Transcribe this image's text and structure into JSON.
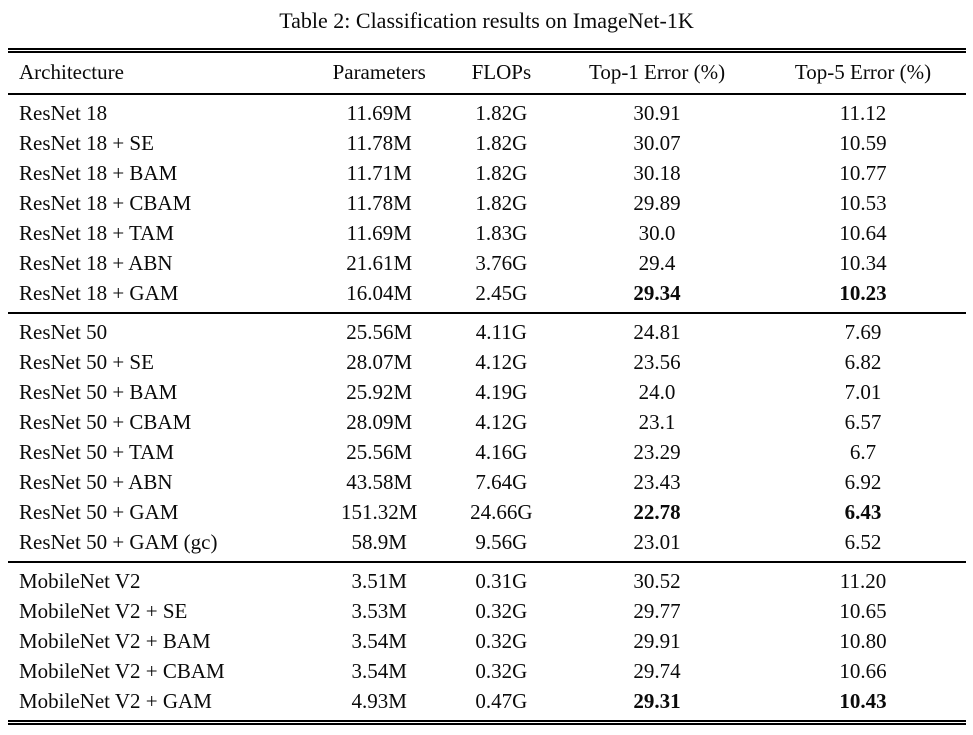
{
  "title": "Table 2: Classification results on ImageNet-1K",
  "table": {
    "columns": [
      "Architecture",
      "Parameters",
      "FLOPs",
      "Top-1 Error (%)",
      "Top-5 Error (%)"
    ],
    "sections": [
      {
        "name": "resnet18",
        "rows": [
          {
            "cells": [
              "ResNet 18",
              "11.69M",
              "1.82G",
              "30.91",
              "11.12"
            ],
            "bold": []
          },
          {
            "cells": [
              "ResNet 18 + SE",
              "11.78M",
              "1.82G",
              "30.07",
              "10.59"
            ],
            "bold": []
          },
          {
            "cells": [
              "ResNet 18 + BAM",
              "11.71M",
              "1.82G",
              "30.18",
              "10.77"
            ],
            "bold": []
          },
          {
            "cells": [
              "ResNet 18 + CBAM",
              "11.78M",
              "1.82G",
              "29.89",
              "10.53"
            ],
            "bold": []
          },
          {
            "cells": [
              "ResNet 18 + TAM",
              "11.69M",
              "1.83G",
              "30.0",
              "10.64"
            ],
            "bold": []
          },
          {
            "cells": [
              "ResNet 18 + ABN",
              "21.61M",
              "3.76G",
              "29.4",
              "10.34"
            ],
            "bold": []
          },
          {
            "cells": [
              "ResNet 18 + GAM",
              "16.04M",
              "2.45G",
              "29.34",
              "10.23"
            ],
            "bold": [
              3,
              4
            ]
          }
        ]
      },
      {
        "name": "resnet50",
        "rows": [
          {
            "cells": [
              "ResNet 50",
              "25.56M",
              "4.11G",
              "24.81",
              "7.69"
            ],
            "bold": []
          },
          {
            "cells": [
              "ResNet 50 + SE",
              "28.07M",
              "4.12G",
              "23.56",
              "6.82"
            ],
            "bold": []
          },
          {
            "cells": [
              "ResNet 50 + BAM",
              "25.92M",
              "4.19G",
              "24.0",
              "7.01"
            ],
            "bold": []
          },
          {
            "cells": [
              "ResNet 50 + CBAM",
              "28.09M",
              "4.12G",
              "23.1",
              "6.57"
            ],
            "bold": []
          },
          {
            "cells": [
              "ResNet 50 + TAM",
              "25.56M",
              "4.16G",
              "23.29",
              "6.7"
            ],
            "bold": []
          },
          {
            "cells": [
              "ResNet 50 + ABN",
              "43.58M",
              "7.64G",
              "23.43",
              "6.92"
            ],
            "bold": []
          },
          {
            "cells": [
              "ResNet 50 + GAM",
              "151.32M",
              "24.66G",
              "22.78",
              "6.43"
            ],
            "bold": [
              3,
              4
            ]
          },
          {
            "cells": [
              "ResNet 50 + GAM (gc)",
              "58.9M",
              "9.56G",
              "23.01",
              "6.52"
            ],
            "bold": []
          }
        ]
      },
      {
        "name": "mobilenetv2",
        "rows": [
          {
            "cells": [
              "MobileNet V2",
              "3.51M",
              "0.31G",
              "30.52",
              "11.20"
            ],
            "bold": []
          },
          {
            "cells": [
              "MobileNet V2 + SE",
              "3.53M",
              "0.32G",
              "29.77",
              "10.65"
            ],
            "bold": []
          },
          {
            "cells": [
              "MobileNet V2 + BAM",
              "3.54M",
              "0.32G",
              "29.91",
              "10.80"
            ],
            "bold": []
          },
          {
            "cells": [
              "MobileNet V2 + CBAM",
              "3.54M",
              "0.32G",
              "29.74",
              "10.66"
            ],
            "bold": []
          },
          {
            "cells": [
              "MobileNet V2 + GAM",
              "4.93M",
              "0.47G",
              "29.31",
              "10.43"
            ],
            "bold": [
              3,
              4
            ]
          }
        ]
      }
    ],
    "cell_names": [
      "architecture-cell",
      "parameters-cell",
      "flops-cell",
      "top1-error-cell",
      "top5-error-cell"
    ],
    "text_color": "#0a0a0a",
    "rule_color": "#000000",
    "background_color": "#ffffff"
  }
}
